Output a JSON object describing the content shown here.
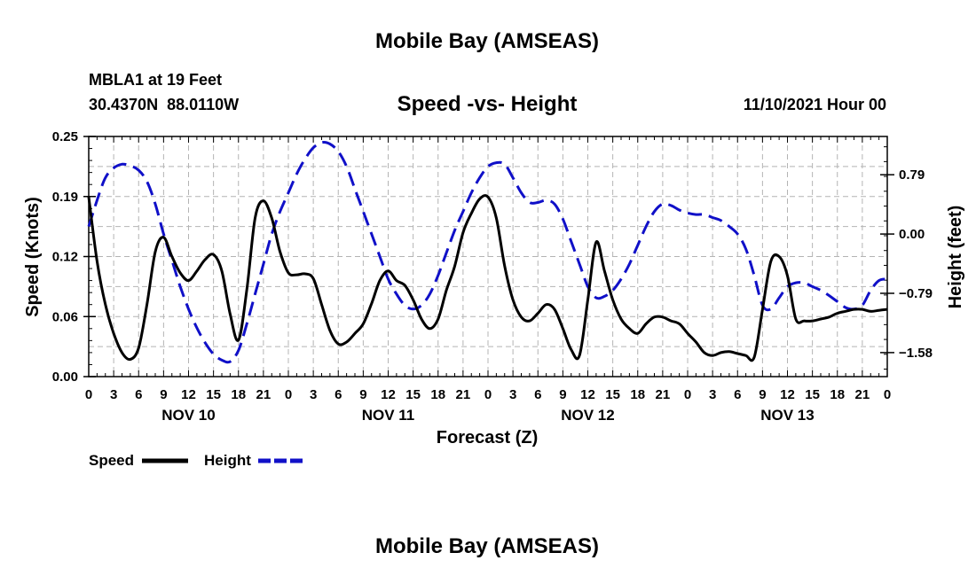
{
  "page": {
    "header_title": "Mobile Bay (AMSEAS)",
    "footer_title": "Mobile Bay (AMSEAS)"
  },
  "station": {
    "name_depth": "MBLA1 at 19 Feet",
    "coords": "30.4370N  88.0110W",
    "datetime": "11/10/2021 Hour 00"
  },
  "legend": {
    "speed_label": "Speed",
    "height_label": "Height"
  },
  "colors": {
    "speed": "#000000",
    "height": "#1010c8",
    "grid": "#b4b4b4"
  },
  "chart_data": {
    "type": "line",
    "title": "Speed -vs- Height",
    "xlabel": "Forecast (Z)",
    "ylabel_left": "Speed (Knots)",
    "ylabel_right": "Height (feet)",
    "x_range_hours": [
      0,
      96
    ],
    "x_ticks": [
      {
        "h": 0,
        "label": "0"
      },
      {
        "h": 3,
        "label": "3"
      },
      {
        "h": 6,
        "label": "6"
      },
      {
        "h": 9,
        "label": "9"
      },
      {
        "h": 12,
        "label": "12"
      },
      {
        "h": 15,
        "label": "15"
      },
      {
        "h": 18,
        "label": "18"
      },
      {
        "h": 21,
        "label": "21"
      },
      {
        "h": 24,
        "label": "0"
      },
      {
        "h": 27,
        "label": "3"
      },
      {
        "h": 30,
        "label": "6"
      },
      {
        "h": 33,
        "label": "9"
      },
      {
        "h": 36,
        "label": "12"
      },
      {
        "h": 39,
        "label": "15"
      },
      {
        "h": 42,
        "label": "18"
      },
      {
        "h": 45,
        "label": "21"
      },
      {
        "h": 48,
        "label": "0"
      },
      {
        "h": 51,
        "label": "3"
      },
      {
        "h": 54,
        "label": "6"
      },
      {
        "h": 57,
        "label": "9"
      },
      {
        "h": 60,
        "label": "12"
      },
      {
        "h": 63,
        "label": "15"
      },
      {
        "h": 66,
        "label": "18"
      },
      {
        "h": 69,
        "label": "21"
      },
      {
        "h": 72,
        "label": "0"
      },
      {
        "h": 75,
        "label": "3"
      },
      {
        "h": 78,
        "label": "6"
      },
      {
        "h": 81,
        "label": "9"
      },
      {
        "h": 84,
        "label": "12"
      },
      {
        "h": 87,
        "label": "15"
      },
      {
        "h": 90,
        "label": "18"
      },
      {
        "h": 93,
        "label": "21"
      },
      {
        "h": 96,
        "label": "0"
      }
    ],
    "day_labels": [
      {
        "h": 12,
        "label": "NOV 10"
      },
      {
        "h": 36,
        "label": "NOV 11"
      },
      {
        "h": 60,
        "label": "NOV 12"
      },
      {
        "h": 84,
        "label": "NOV 13"
      }
    ],
    "y_left": {
      "min": 0,
      "max": 0.25,
      "ticks": [
        {
          "v": 0,
          "label": "0.00"
        },
        {
          "v": 0.0625,
          "label": "0.06"
        },
        {
          "v": 0.125,
          "label": "0.12"
        },
        {
          "v": 0.1875,
          "label": "0.19"
        },
        {
          "v": 0.25,
          "label": "0.25"
        }
      ]
    },
    "y_right": {
      "min": -1.9,
      "max": 1.3,
      "ticks": [
        {
          "v": 0.79,
          "label": "0.79"
        },
        {
          "v": 0.0,
          "label": "0.00"
        },
        {
          "v": -0.79,
          "label": "−0.79"
        },
        {
          "v": -1.58,
          "label": "−1.58"
        }
      ]
    },
    "series": [
      {
        "name": "Speed",
        "axis": "left",
        "x": [
          0,
          1,
          2,
          3,
          4,
          5,
          6,
          7,
          8,
          9,
          10,
          11,
          12,
          13,
          14,
          15,
          16,
          17,
          18,
          19,
          20,
          21,
          22,
          23,
          24,
          25,
          26,
          27,
          28,
          29,
          30,
          31,
          32,
          33,
          34,
          35,
          36,
          37,
          38,
          39,
          40,
          41,
          42,
          43,
          44,
          45,
          46,
          47,
          48,
          49,
          50,
          51,
          52,
          53,
          54,
          55,
          56,
          57,
          58,
          59,
          60,
          61,
          62,
          63,
          64,
          65,
          66,
          67,
          68,
          69,
          70,
          71,
          72,
          73,
          74,
          75,
          76,
          77,
          78,
          79,
          80,
          81,
          82,
          83,
          84,
          85,
          86,
          87,
          88,
          89,
          90,
          91,
          92,
          93,
          94,
          95,
          96
        ],
        "values": [
          0.187,
          0.12,
          0.075,
          0.045,
          0.025,
          0.018,
          0.03,
          0.075,
          0.13,
          0.145,
          0.125,
          0.108,
          0.1,
          0.11,
          0.122,
          0.127,
          0.11,
          0.065,
          0.038,
          0.09,
          0.165,
          0.183,
          0.165,
          0.13,
          0.108,
          0.106,
          0.107,
          0.102,
          0.075,
          0.048,
          0.034,
          0.036,
          0.045,
          0.055,
          0.076,
          0.1,
          0.11,
          0.1,
          0.095,
          0.08,
          0.06,
          0.05,
          0.06,
          0.09,
          0.115,
          0.15,
          0.17,
          0.185,
          0.187,
          0.165,
          0.115,
          0.08,
          0.062,
          0.058,
          0.066,
          0.075,
          0.07,
          0.05,
          0.028,
          0.022,
          0.08,
          0.14,
          0.11,
          0.08,
          0.06,
          0.05,
          0.045,
          0.055,
          0.062,
          0.062,
          0.058,
          0.055,
          0.045,
          0.036,
          0.025,
          0.022,
          0.025,
          0.026,
          0.024,
          0.022,
          0.02,
          0.07,
          0.12,
          0.125,
          0.105,
          0.06,
          0.058,
          0.058,
          0.06,
          0.062,
          0.066,
          0.068,
          0.07,
          0.07,
          0.068,
          0.069,
          0.07
        ]
      },
      {
        "name": "Height",
        "axis": "right",
        "x": [
          0,
          1,
          2,
          3,
          4,
          5,
          6,
          7,
          8,
          9,
          10,
          11,
          12,
          13,
          14,
          15,
          16,
          17,
          18,
          19,
          20,
          21,
          22,
          23,
          24,
          25,
          26,
          27,
          28,
          29,
          30,
          31,
          32,
          33,
          34,
          35,
          36,
          37,
          38,
          39,
          40,
          41,
          42,
          43,
          44,
          45,
          46,
          47,
          48,
          49,
          50,
          51,
          52,
          53,
          54,
          55,
          56,
          57,
          58,
          59,
          60,
          61,
          62,
          63,
          64,
          65,
          66,
          67,
          68,
          69,
          70,
          71,
          72,
          73,
          74,
          75,
          76,
          77,
          78,
          79,
          80,
          81,
          82,
          83,
          84,
          85,
          86,
          87,
          88,
          89,
          90,
          91,
          92,
          93,
          94,
          95,
          96
        ],
        "values": [
          0.1,
          0.45,
          0.75,
          0.88,
          0.93,
          0.91,
          0.85,
          0.7,
          0.4,
          0.0,
          -0.35,
          -0.7,
          -1.0,
          -1.25,
          -1.45,
          -1.6,
          -1.68,
          -1.7,
          -1.55,
          -1.2,
          -0.8,
          -0.4,
          0.0,
          0.3,
          0.55,
          0.8,
          1.0,
          1.15,
          1.22,
          1.2,
          1.1,
          0.9,
          0.6,
          0.3,
          0.0,
          -0.3,
          -0.6,
          -0.8,
          -0.95,
          -1.0,
          -0.95,
          -0.8,
          -0.55,
          -0.25,
          0.05,
          0.3,
          0.55,
          0.75,
          0.9,
          0.95,
          0.93,
          0.75,
          0.55,
          0.42,
          0.42,
          0.45,
          0.4,
          0.2,
          -0.1,
          -0.4,
          -0.7,
          -0.85,
          -0.83,
          -0.75,
          -0.6,
          -0.4,
          -0.15,
          0.1,
          0.3,
          0.4,
          0.38,
          0.32,
          0.28,
          0.26,
          0.26,
          0.22,
          0.18,
          0.1,
          0.0,
          -0.2,
          -0.55,
          -0.95,
          -1.0,
          -0.85,
          -0.7,
          -0.65,
          -0.65,
          -0.7,
          -0.75,
          -0.82,
          -0.9,
          -0.98,
          -1.0,
          -0.95,
          -0.75,
          -0.62,
          -0.6
        ]
      }
    ]
  }
}
